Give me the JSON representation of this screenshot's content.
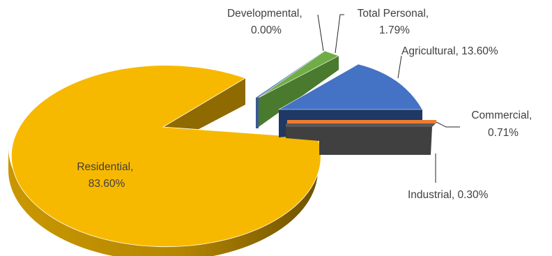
{
  "chart_data": {
    "type": "pie",
    "style": "3d-exploded",
    "legend": "none",
    "title": "",
    "slices": [
      {
        "name": "Residential",
        "value": 83.6,
        "label_line1": "Residential,",
        "label_line2": "83.60%",
        "color": "#F7B900",
        "side_color": "#B98900"
      },
      {
        "name": "Developmental",
        "value": 0.0,
        "label_line1": "Developmental,",
        "label_line2": "0.00%",
        "color": "#5C7FC2",
        "side_color": "#3B5A95"
      },
      {
        "name": "Total Personal",
        "value": 1.79,
        "label_line1": "Total Personal,",
        "label_line2": "1.79%",
        "color": "#70AD47",
        "side_color": "#4A7A2E"
      },
      {
        "name": "Agricultural",
        "value": 13.6,
        "label_line1": "Agricultural, 13.60%",
        "label_line2": "",
        "color": "#4472C4",
        "side_color": "#1F3864"
      },
      {
        "name": "Commercial",
        "value": 0.71,
        "label_line1": "Commercial,",
        "label_line2": "0.71%",
        "color": "#ED7D31",
        "side_color": "#B35A1F"
      },
      {
        "name": "Industrial",
        "value": 0.3,
        "label_line1": "Industrial, 0.30%",
        "label_line2": "",
        "color": "#595959",
        "side_color": "#404040"
      }
    ]
  }
}
